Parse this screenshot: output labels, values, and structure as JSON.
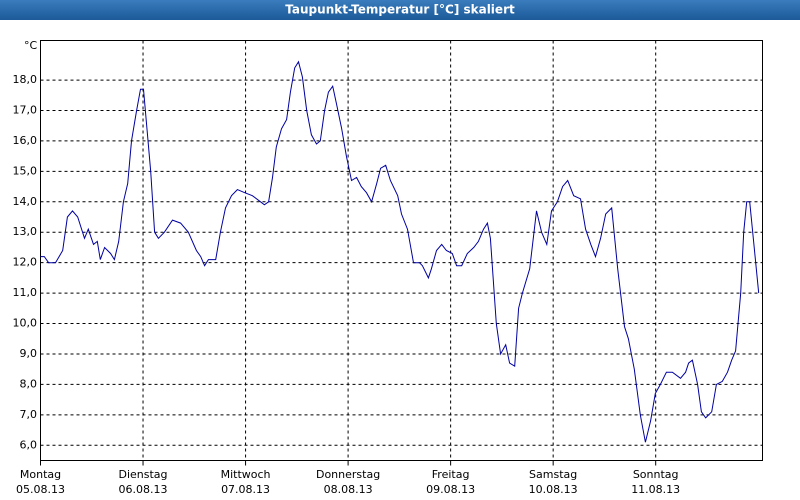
{
  "chart_data": {
    "type": "line",
    "title": "Taupunkt-Temperatur [°C] skaliert",
    "y_unit": "°C",
    "xlim": [
      0,
      169
    ],
    "ylim": [
      5.5,
      19.3
    ],
    "xticks": [
      {
        "value": 0,
        "label": "Montag"
      },
      {
        "value": 24,
        "label": "Dienstag"
      },
      {
        "value": 48,
        "label": "Mittwoch"
      },
      {
        "value": 72,
        "label": "Donnerstag"
      },
      {
        "value": 96,
        "label": "Freitag"
      },
      {
        "value": 120,
        "label": "Samstag"
      },
      {
        "value": 144,
        "label": "Sonntag"
      }
    ],
    "xtick_dates": [
      "05.08.13",
      "06.08.13",
      "07.08.13",
      "08.08.13",
      "09.08.13",
      "10.08.13",
      "11.08.13"
    ],
    "yticks": [
      {
        "value": 6,
        "label": "6,0"
      },
      {
        "value": 7,
        "label": "7,0"
      },
      {
        "value": 8,
        "label": "8,0"
      },
      {
        "value": 9,
        "label": "9,0"
      },
      {
        "value": 10,
        "label": "10,0"
      },
      {
        "value": 11,
        "label": "11,0"
      },
      {
        "value": 12,
        "label": "12,0"
      },
      {
        "value": 13,
        "label": "13,0"
      },
      {
        "value": 14,
        "label": "14,0"
      },
      {
        "value": 15,
        "label": "15,0"
      },
      {
        "value": 16,
        "label": "16,0"
      },
      {
        "value": 17,
        "label": "17,0"
      },
      {
        "value": 18,
        "label": "18,0"
      }
    ],
    "grid": true,
    "series": [
      {
        "color": "#0000a0",
        "x": [
          0,
          0.9,
          1.9,
          3.5,
          5.2,
          6.3,
          7.5,
          8.7,
          10.3,
          11.2,
          12.4,
          13.3,
          14.0,
          15.0,
          16.4,
          17.3,
          18.3,
          19.4,
          20.4,
          21.3,
          22.5,
          23.4,
          24.1,
          25.8,
          26.7,
          27.6,
          29.0,
          30.9,
          32.8,
          34.6,
          36.5,
          37.5,
          38.4,
          39.3,
          41.0,
          42.1,
          43.3,
          44.7,
          46.1,
          47.8,
          49.6,
          51.5,
          52.4,
          53.4,
          54.3,
          55.2,
          56.4,
          57.6,
          58.5,
          59.5,
          60.4,
          61.3,
          62.3,
          63.4,
          64.6,
          65.5,
          66.5,
          67.4,
          68.4,
          69.3,
          70.5,
          71.6,
          72.8,
          74.0,
          75.1,
          76.3,
          77.5,
          78.7,
          79.6,
          80.8,
          81.9,
          83.6,
          84.5,
          85.9,
          87.3,
          88.7,
          89.4,
          90.8,
          91.5,
          92.7,
          93.9,
          95.0,
          96.4,
          97.4,
          98.6,
          99.9,
          101.4,
          102.5,
          103.7,
          104.6,
          105.3,
          106.7,
          107.7,
          108.9,
          109.8,
          111.0,
          111.9,
          112.8,
          114.5,
          116.1,
          117.3,
          118.5,
          119.6,
          121.0,
          122.2,
          123.4,
          124.8,
          126.4,
          127.6,
          128.8,
          129.9,
          131.1,
          132.3,
          133.7,
          135.1,
          136.7,
          137.6,
          139.0,
          140.4,
          141.6,
          142.8,
          143.9,
          145.1,
          146.5,
          147.9,
          149.8,
          151.0,
          151.7,
          152.6,
          153.8,
          154.7,
          155.7,
          157.1,
          158.2,
          159.6,
          160.8,
          161.8,
          162.7,
          163.9,
          164.6,
          165.3,
          166.0,
          166.7,
          168.1
        ],
        "values": [
          12.2,
          12.2,
          12.0,
          12.0,
          12.4,
          13.5,
          13.7,
          13.5,
          12.8,
          13.1,
          12.6,
          12.7,
          12.1,
          12.5,
          12.3,
          12.1,
          12.7,
          14.0,
          14.6,
          16.0,
          17.0,
          17.7,
          17.7,
          15.0,
          13.0,
          12.8,
          13.0,
          13.4,
          13.3,
          13.0,
          12.4,
          12.2,
          11.9,
          12.1,
          12.1,
          13.0,
          13.8,
          14.2,
          14.4,
          14.3,
          14.2,
          14.0,
          13.9,
          14.0,
          14.8,
          15.8,
          16.4,
          16.7,
          17.6,
          18.4,
          18.6,
          18.1,
          17.0,
          16.2,
          15.9,
          16.0,
          17.0,
          17.6,
          17.8,
          17.2,
          16.4,
          15.5,
          14.7,
          14.8,
          14.5,
          14.3,
          14.0,
          14.6,
          15.1,
          15.2,
          14.7,
          14.2,
          13.6,
          13.1,
          12.0,
          12.0,
          11.9,
          11.5,
          11.8,
          12.4,
          12.6,
          12.4,
          12.3,
          11.9,
          11.9,
          12.3,
          12.5,
          12.7,
          13.1,
          13.3,
          12.8,
          10.0,
          9.0,
          9.3,
          8.7,
          8.6,
          10.5,
          11.0,
          11.8,
          13.7,
          13.0,
          12.6,
          13.7,
          14.0,
          14.5,
          14.7,
          14.2,
          14.1,
          13.1,
          12.6,
          12.2,
          12.8,
          13.6,
          13.8,
          11.8,
          9.9,
          9.5,
          8.5,
          7.0,
          6.1,
          6.8,
          7.7,
          8.0,
          8.4,
          8.4,
          8.2,
          8.4,
          8.7,
          8.8,
          8.0,
          7.1,
          6.9,
          7.1,
          8.0,
          8.1,
          8.4,
          8.8,
          9.1,
          11.0,
          13.0,
          14.0,
          14.0,
          13.0,
          11.0
        ]
      }
    ]
  }
}
